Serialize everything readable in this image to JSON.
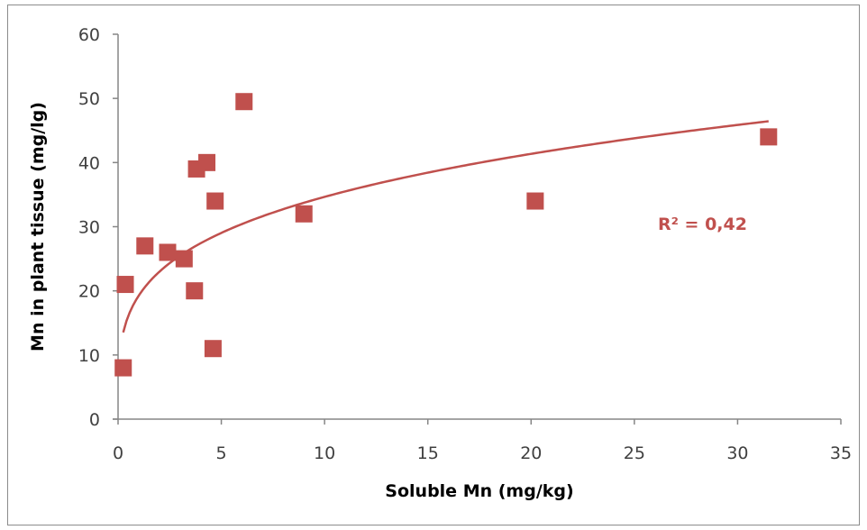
{
  "chart_data": {
    "type": "scatter",
    "xlabel": "Soluble Mn (mg/kg)",
    "ylabel": "Mn in plant tissue (mg/lg)",
    "xlim": [
      0,
      35
    ],
    "ylim": [
      0,
      60
    ],
    "xticks": [
      0,
      5,
      10,
      15,
      20,
      25,
      30,
      35
    ],
    "yticks": [
      0,
      10,
      20,
      30,
      40,
      50,
      60
    ],
    "grid": false,
    "legend": "none",
    "marker_color": "#c0504d",
    "points": [
      {
        "x": 0.25,
        "y": 8
      },
      {
        "x": 0.35,
        "y": 21
      },
      {
        "x": 1.3,
        "y": 27
      },
      {
        "x": 2.4,
        "y": 26
      },
      {
        "x": 3.2,
        "y": 25
      },
      {
        "x": 3.7,
        "y": 20
      },
      {
        "x": 3.8,
        "y": 39
      },
      {
        "x": 4.3,
        "y": 40
      },
      {
        "x": 4.6,
        "y": 11
      },
      {
        "x": 4.7,
        "y": 34
      },
      {
        "x": 6.1,
        "y": 49.5
      },
      {
        "x": 9.0,
        "y": 32
      },
      {
        "x": 20.2,
        "y": 34
      },
      {
        "x": 31.5,
        "y": 44
      }
    ],
    "trendline": {
      "type": "power",
      "color": "#c0504d",
      "x_range": [
        0.25,
        31.5
      ],
      "samples": [
        {
          "x": 0.25,
          "y": 13
        },
        {
          "x": 1,
          "y": 20
        },
        {
          "x": 2,
          "y": 23.5
        },
        {
          "x": 4,
          "y": 27.5
        },
        {
          "x": 9,
          "y": 33.5
        },
        {
          "x": 20,
          "y": 41
        },
        {
          "x": 31.5,
          "y": 46
        }
      ]
    },
    "annotations": [
      {
        "text": "R² = 0,42",
        "x": 28.3,
        "y": 30.5,
        "color": "#c0504d"
      }
    ]
  }
}
